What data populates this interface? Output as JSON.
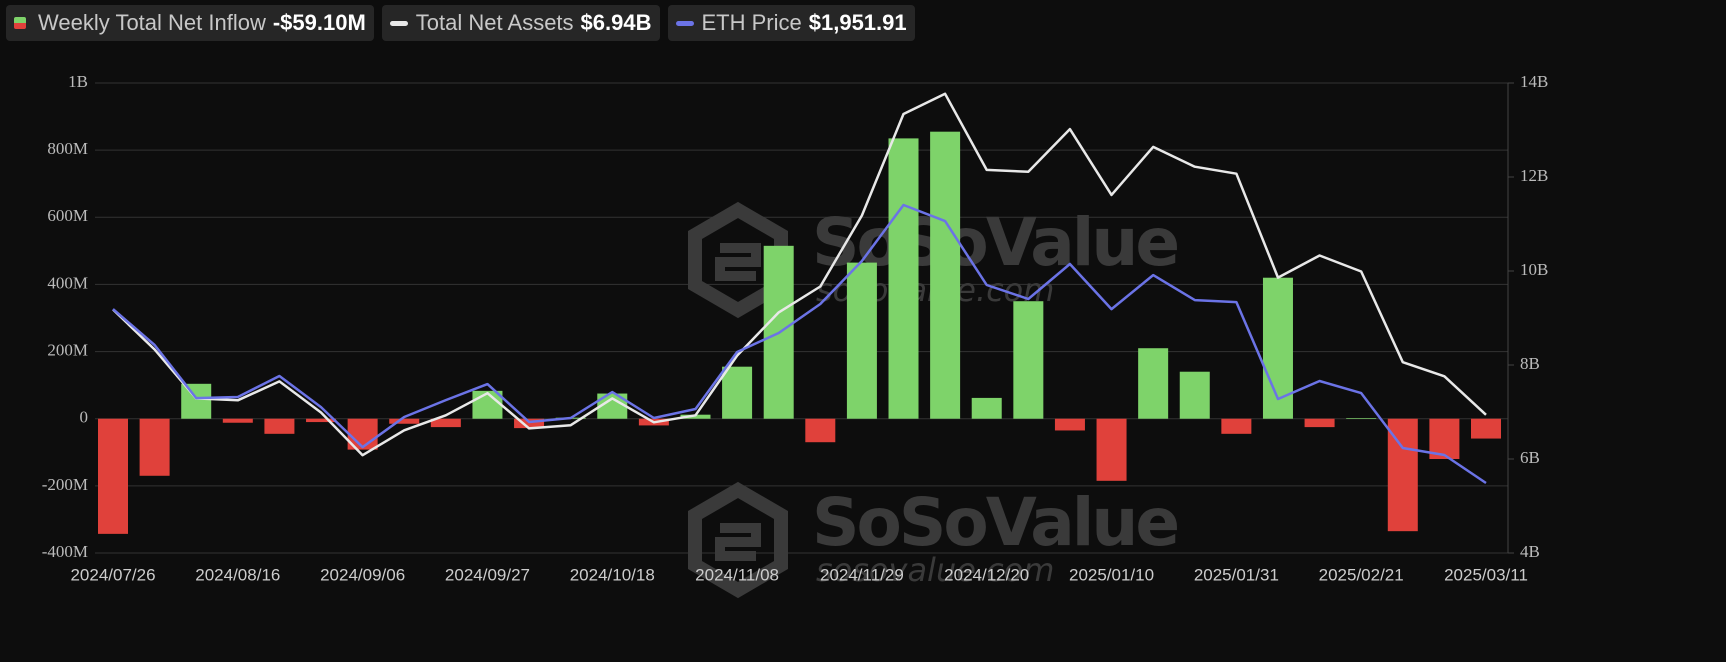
{
  "chart_data": {
    "type": "combo",
    "categories": [
      "2024/07/26",
      null,
      null,
      "2024/08/16",
      null,
      null,
      "2024/09/06",
      null,
      null,
      "2024/09/27",
      null,
      null,
      "2024/10/18",
      null,
      null,
      "2024/11/08",
      null,
      null,
      "2024/11/29",
      null,
      null,
      "2024/12/20",
      null,
      null,
      "2025/01/10",
      null,
      null,
      "2025/01/31",
      null,
      null,
      "2025/02/21",
      null,
      null,
      "2025/03/11"
    ],
    "series": [
      {
        "name": "Weekly Total Net Inflow",
        "type": "bar",
        "legend_value": "-$59.10M",
        "color": "#7ed36a",
        "negative_color": "#e0413b",
        "values": [
          -343,
          -170,
          104,
          -12,
          -45,
          -10,
          -92,
          -15,
          -25,
          83,
          -28,
          3,
          75,
          -20,
          12,
          155,
          515,
          -70,
          465,
          835,
          855,
          62,
          350,
          -35,
          -185,
          210,
          140,
          -45,
          420,
          -25,
          2,
          -335,
          -120,
          -59.1
        ]
      },
      {
        "name": "Total Net Assets",
        "type": "line",
        "axis": "y2",
        "legend_value": "$6.94B",
        "color": "#e8e8e8",
        "values": [
          9.18,
          8.33,
          7.29,
          7.25,
          7.65,
          6.99,
          6.08,
          6.61,
          6.93,
          7.4,
          6.65,
          6.72,
          7.29,
          6.78,
          6.93,
          8.2,
          9.12,
          9.67,
          11.18,
          13.34,
          13.77,
          12.15,
          12.11,
          13.02,
          11.62,
          12.64,
          12.22,
          12.07,
          9.86,
          10.33,
          9.99,
          8.06,
          7.76,
          6.94
        ]
      },
      {
        "name": "ETH Price",
        "type": "line",
        "axis": "none",
        "legend_value": "$1,951.91",
        "color": "#6b73e6",
        "values": [
          3269,
          2997,
          2595,
          2603,
          2762,
          2527,
          2224,
          2452,
          2580,
          2701,
          2414,
          2444,
          2641,
          2444,
          2512,
          2944,
          3088,
          3307,
          3633,
          4057,
          3935,
          3451,
          3345,
          3610,
          3269,
          3526,
          3337,
          3322,
          2588,
          2724,
          2633,
          2217,
          2164,
          1951.91
        ]
      }
    ],
    "ylim": [
      -400,
      1000
    ],
    "yticks": [
      {
        "value": -400,
        "label": "-400M"
      },
      {
        "value": -200,
        "label": "-200M"
      },
      0,
      {
        "value": 200,
        "label": "200M"
      },
      {
        "value": 400,
        "label": "400M"
      },
      {
        "value": 600,
        "label": "600M"
      },
      {
        "value": 800,
        "label": "800M"
      },
      {
        "value": 1000,
        "label": "1B"
      }
    ],
    "y2lim": [
      4,
      14
    ],
    "y2ticks": [
      {
        "value": 4,
        "label": "4B"
      },
      {
        "value": 6,
        "label": "6B"
      },
      {
        "value": 8,
        "label": "8B"
      },
      {
        "value": 10,
        "label": "10B"
      },
      {
        "value": 12,
        "label": "12B"
      },
      {
        "value": 14,
        "label": "14B"
      }
    ],
    "grid": true,
    "watermark": {
      "brand": "SoSoValue",
      "site": "sosovalue.com"
    }
  }
}
